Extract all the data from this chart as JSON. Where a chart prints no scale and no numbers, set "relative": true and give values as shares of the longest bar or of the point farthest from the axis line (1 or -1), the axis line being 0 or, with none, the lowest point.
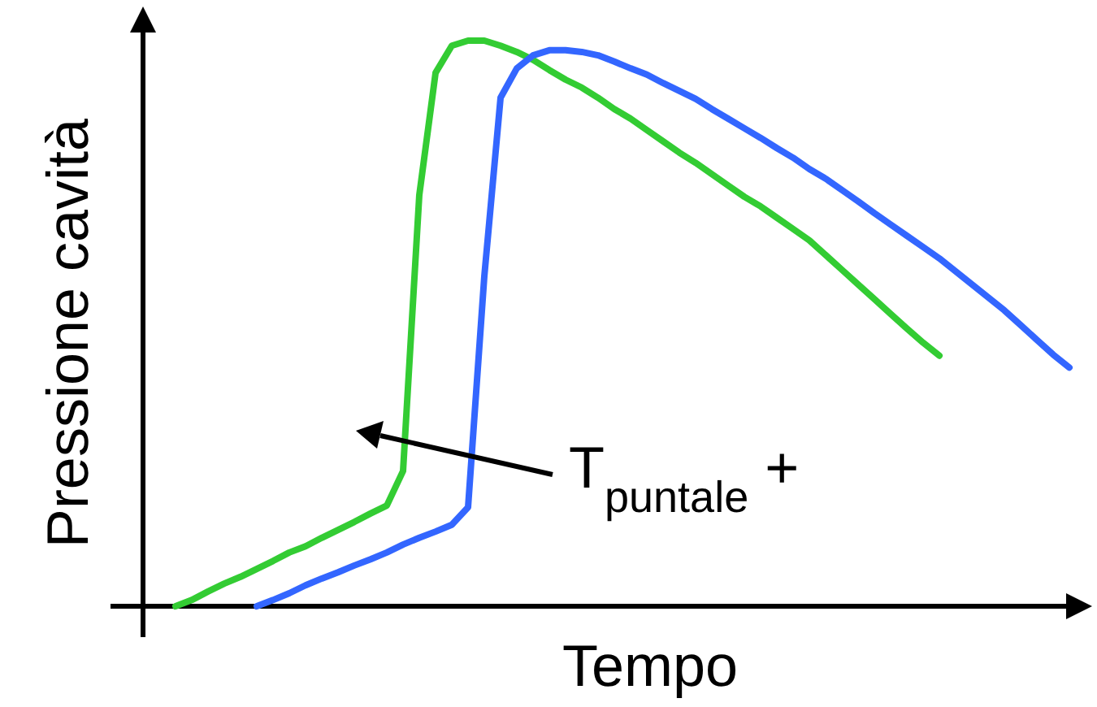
{
  "chart_data": {
    "type": "line",
    "relative": true,
    "xlabel": "Tempo",
    "ylabel": "Pressione cavità",
    "annotations": [
      "T$_{puntale}$ +"
    ],
    "categories": [
      null,
      null,
      null,
      null,
      null,
      null,
      null,
      null,
      null,
      null,
      null,
      null,
      null,
      null,
      null,
      null,
      null,
      null,
      null,
      null,
      null,
      null,
      null,
      null,
      null,
      null,
      null,
      null,
      null,
      null,
      null,
      null,
      null,
      null,
      null,
      null,
      null,
      null,
      null,
      null,
      null,
      null,
      null,
      null,
      null,
      null,
      null,
      null,
      null,
      null,
      null,
      null,
      null,
      null,
      null,
      null,
      null,
      null
    ],
    "series": [
      {
        "color": "#33cc33",
        "values": [
          null,
          null,
          0,
          0.011,
          0.026,
          0.04,
          0.052,
          0.066,
          0.08,
          0.095,
          0.106,
          0.121,
          0.135,
          0.149,
          0.164,
          0.178,
          0.239,
          0.727,
          0.943,
          0.991,
          1,
          1,
          0.991,
          0.98,
          0.966,
          0.948,
          0.931,
          0.917,
          0.899,
          0.879,
          0.862,
          0.842,
          0.822,
          0.802,
          0.784,
          0.764,
          0.744,
          0.724,
          0.707,
          0.687,
          0.667,
          0.647,
          0.621,
          0.595,
          0.569,
          0.543,
          0.517,
          0.491,
          0.466,
          0.443,
          null,
          null,
          null,
          null,
          null,
          null,
          null,
          null
        ]
      },
      {
        "color": "#3366ff",
        "values": [
          null,
          null,
          null,
          null,
          null,
          null,
          null,
          0,
          0.011,
          0.023,
          0.037,
          0.049,
          0.06,
          0.072,
          0.083,
          0.095,
          0.109,
          0.121,
          0.132,
          0.144,
          0.175,
          0.583,
          0.899,
          0.951,
          0.974,
          0.983,
          0.983,
          0.98,
          0.974,
          0.963,
          0.951,
          0.94,
          0.925,
          0.911,
          0.897,
          0.879,
          0.862,
          0.845,
          0.828,
          0.81,
          0.793,
          0.773,
          0.756,
          0.736,
          0.716,
          0.695,
          0.675,
          0.655,
          0.635,
          0.615,
          0.592,
          0.569,
          0.546,
          0.523,
          0.497,
          0.471,
          0.445,
          0.422
        ]
      }
    ]
  }
}
